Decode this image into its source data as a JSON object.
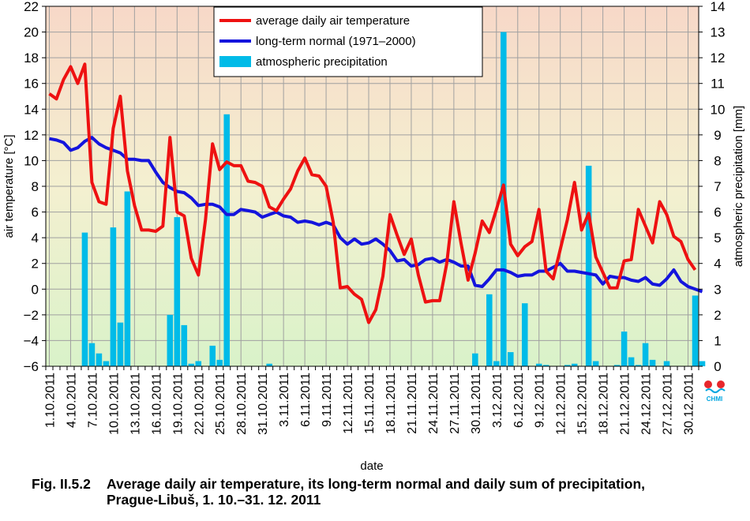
{
  "chart_data": {
    "type": "line+bar",
    "xlabel": "date",
    "ylabel": "air temperature [°C]",
    "y2label": "atmospheric precipitation [mm]",
    "ylim": [
      -6,
      22
    ],
    "y2lim": [
      0,
      14
    ],
    "yticks": [
      -6,
      -4,
      -2,
      0,
      2,
      4,
      6,
      8,
      10,
      12,
      14,
      16,
      18,
      20,
      22
    ],
    "y2ticks": [
      0,
      1,
      2,
      3,
      4,
      5,
      6,
      7,
      8,
      9,
      10,
      11,
      12,
      13,
      14
    ],
    "xticks": [
      "1.10.2011",
      "4.10.2011",
      "7.10.2011",
      "10.10.2011",
      "13.10.2011",
      "16.10.2011",
      "19.10.2011",
      "22.10.2011",
      "25.10.2011",
      "28.10.2011",
      "31.10.2011",
      "3.11.2011",
      "6.11.2011",
      "9.11.2011",
      "12.11.2011",
      "15.11.2011",
      "18.11.2011",
      "21.11.2011",
      "24.11.2011",
      "27.11.2011",
      "30.11.2011",
      "3.12.2011",
      "6.12.2011",
      "9.12.2011",
      "12.12.2011",
      "15.12.2011",
      "18.12.2011",
      "21.12.2011",
      "24.12.2011",
      "27.12.2011",
      "30.12.2011"
    ],
    "grid": true,
    "legend_position": "top-center",
    "series": [
      {
        "name": "average daily air temperature",
        "type": "line",
        "axis": "left",
        "color": "#ee1111",
        "values": [
          15.2,
          14.8,
          16.3,
          17.3,
          16.0,
          17.5,
          8.3,
          6.8,
          6.6,
          12.5,
          15.0,
          9.2,
          6.5,
          4.6,
          4.6,
          4.5,
          4.9,
          11.8,
          6.0,
          5.7,
          2.4,
          1.1,
          5.4,
          11.3,
          9.3,
          9.9,
          9.6,
          9.6,
          8.4,
          8.3,
          8.0,
          6.4,
          6.1,
          7.0,
          7.8,
          9.2,
          10.2,
          8.9,
          8.8,
          8.0,
          5.2,
          0.1,
          0.2,
          -0.4,
          -0.8,
          -2.6,
          -1.6,
          1.0,
          5.8,
          4.2,
          2.7,
          3.9,
          1.1,
          -1.0,
          -0.9,
          -0.9,
          2.0,
          6.8,
          3.6,
          0.7,
          2.8,
          5.3,
          4.4,
          6.2,
          8.1,
          3.5,
          2.6,
          3.3,
          3.7,
          6.2,
          1.4,
          0.8,
          3.1,
          5.4,
          8.3,
          4.6,
          5.9,
          2.5,
          1.3,
          0.1,
          0.1,
          2.2,
          2.3,
          6.2,
          4.9,
          3.6,
          6.8,
          5.8,
          4.1,
          3.7,
          2.3,
          1.5
        ]
      },
      {
        "name": "long-term normal (1971–2000)",
        "type": "line",
        "axis": "left",
        "color": "#1414dd",
        "values": [
          11.7,
          11.6,
          11.4,
          10.8,
          11.0,
          11.5,
          11.8,
          11.3,
          11.0,
          10.8,
          10.6,
          10.1,
          10.1,
          10.0,
          10.0,
          9.1,
          8.3,
          7.9,
          7.6,
          7.5,
          7.1,
          6.5,
          6.6,
          6.6,
          6.4,
          5.8,
          5.8,
          6.2,
          6.1,
          6.0,
          5.6,
          5.8,
          6.0,
          5.7,
          5.6,
          5.2,
          5.3,
          5.2,
          5.0,
          5.2,
          5.0,
          4.0,
          3.5,
          3.9,
          3.5,
          3.6,
          3.9,
          3.5,
          3.0,
          2.2,
          2.3,
          1.8,
          1.9,
          2.3,
          2.4,
          2.1,
          2.3,
          2.1,
          1.8,
          1.8,
          0.3,
          0.2,
          0.8,
          1.5,
          1.5,
          1.3,
          1.0,
          1.1,
          1.1,
          1.4,
          1.4,
          1.7,
          2.0,
          1.4,
          1.4,
          1.3,
          1.2,
          1.1,
          0.4,
          1.0,
          0.9,
          0.9,
          0.7,
          0.6,
          0.9,
          0.4,
          0.3,
          0.8,
          1.5,
          0.6,
          0.2,
          0.0,
          -0.2
        ]
      },
      {
        "name": "atmospheric precipitation",
        "type": "bar",
        "axis": "right",
        "color": "#00bbe8",
        "values": [
          0,
          0,
          0,
          0,
          0,
          5.2,
          0.9,
          0.5,
          0.2,
          5.4,
          1.7,
          6.8,
          0,
          0,
          0,
          0,
          0,
          2.0,
          5.8,
          1.6,
          0.1,
          0.2,
          0,
          0.8,
          0.25,
          9.8,
          0,
          0,
          0,
          0,
          0,
          0.1,
          0,
          0,
          0,
          0,
          0,
          0,
          0,
          0,
          0,
          0,
          0,
          0,
          0,
          0,
          0,
          0,
          0,
          0,
          0,
          0,
          0,
          0,
          0,
          0,
          0,
          0,
          0,
          0,
          0.5,
          0,
          2.8,
          0.2,
          13.0,
          0.55,
          0,
          2.45,
          0,
          0.1,
          0.05,
          0,
          0,
          0.05,
          0.1,
          0,
          7.8,
          0.2,
          0,
          0,
          0.05,
          1.35,
          0.35,
          0.05,
          0.9,
          0.25,
          0,
          0.2,
          0,
          0,
          0,
          2.75,
          0.2
        ]
      }
    ]
  },
  "logo": {
    "text": "CHMI",
    "color_red": "#e8262b",
    "color_blue": "#00a6e0"
  },
  "caption": {
    "number": "Fig. II.5.2",
    "line1": "Average daily air temperature, its long-term normal and daily sum of precipitation,",
    "line2": "Prague-Libuš, 1. 10.–31. 12. 2011"
  },
  "colors": {
    "plot_top": "#f7d8c8",
    "plot_middle": "#f4f0d0",
    "plot_bottom": "#d9f2c9",
    "grid": "#a0a0a0"
  }
}
